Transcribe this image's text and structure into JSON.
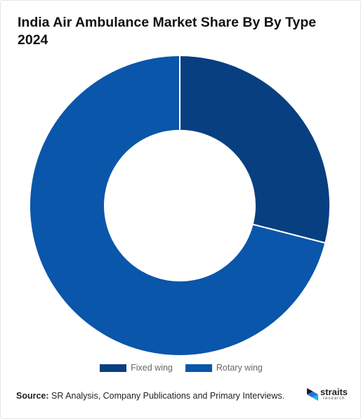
{
  "chart_data": {
    "type": "pie",
    "title": "India Air Ambulance Market Share By By Type 2024",
    "donut": true,
    "categories": [
      "Fixed wing",
      "Rotary wing"
    ],
    "values": [
      29,
      71
    ],
    "colors": [
      "#083f80",
      "#0a56aa"
    ],
    "legend_position": "bottom"
  },
  "footer": {
    "source_label": "Source:",
    "source_text": " SR Analysis, Company Publications and Primary Interviews."
  },
  "logo": {
    "name": "straits",
    "sub": "research",
    "icon": "straits-logo-icon"
  }
}
